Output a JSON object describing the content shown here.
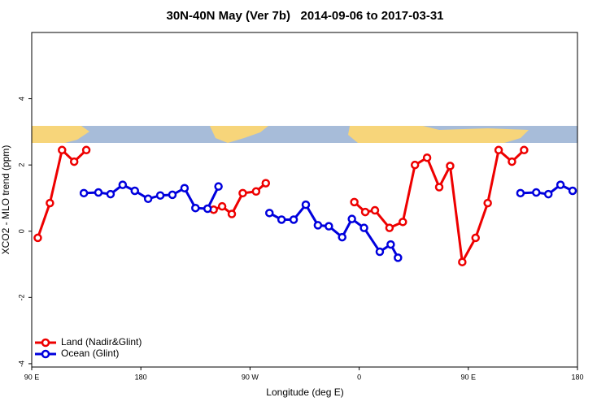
{
  "chart_data": {
    "type": "line",
    "title": "30N-40N May (Ver 7b)   2014-09-06 to 2017-03-31",
    "x_label": "Longitude (deg E)",
    "y_label": "XCO2 - MLO trend (ppm)",
    "xlim": [
      90,
      540
    ],
    "xticks": [
      {
        "value": 90,
        "label": "90 E"
      },
      180,
      {
        "value": 270,
        "label": "90 W"
      },
      {
        "value": 360,
        "label": "0"
      },
      {
        "value": 450,
        "label": "90 E"
      },
      {
        "value": 540,
        "label": "180"
      }
    ],
    "ylim": [
      -4.1,
      6.0
    ],
    "yticks": [
      -4,
      -2,
      0,
      2,
      4
    ],
    "legend": "bottom-left",
    "series": [
      {
        "name": "Land (Nadir&Glint)",
        "color": "#ee0000",
        "x": [
          95,
          105,
          115,
          125,
          135,
          null,
          240,
          247,
          255,
          264,
          275,
          283,
          null,
          356,
          365,
          373,
          385,
          396,
          406,
          416,
          426,
          435,
          445,
          456,
          466,
          475,
          486,
          496
        ],
        "values": [
          -0.2,
          0.85,
          2.45,
          2.1,
          2.45,
          null,
          0.65,
          0.75,
          0.52,
          1.15,
          1.2,
          1.45,
          null,
          0.88,
          0.58,
          0.63,
          0.1,
          0.28,
          2.0,
          2.22,
          1.33,
          1.97,
          -0.93,
          -0.2,
          0.85,
          2.45,
          2.1,
          2.45
        ]
      },
      {
        "name": "Ocean (Glint)",
        "color": "#0000dd",
        "x": [
          133,
          145,
          155,
          165,
          175,
          186,
          196,
          206,
          216,
          225,
          235,
          244,
          null,
          286,
          296,
          306,
          316,
          326,
          335,
          346,
          354,
          364,
          377,
          386,
          392,
          null,
          493,
          506,
          516,
          526,
          536
        ],
        "values": [
          1.15,
          1.17,
          1.12,
          1.4,
          1.22,
          0.98,
          1.08,
          1.1,
          1.3,
          0.7,
          0.68,
          1.35,
          null,
          0.55,
          0.35,
          0.35,
          0.8,
          0.18,
          0.15,
          -0.18,
          0.37,
          0.1,
          -0.62,
          -0.4,
          -0.8,
          null,
          1.15,
          1.17,
          1.12,
          1.4,
          1.22
        ]
      }
    ]
  }
}
